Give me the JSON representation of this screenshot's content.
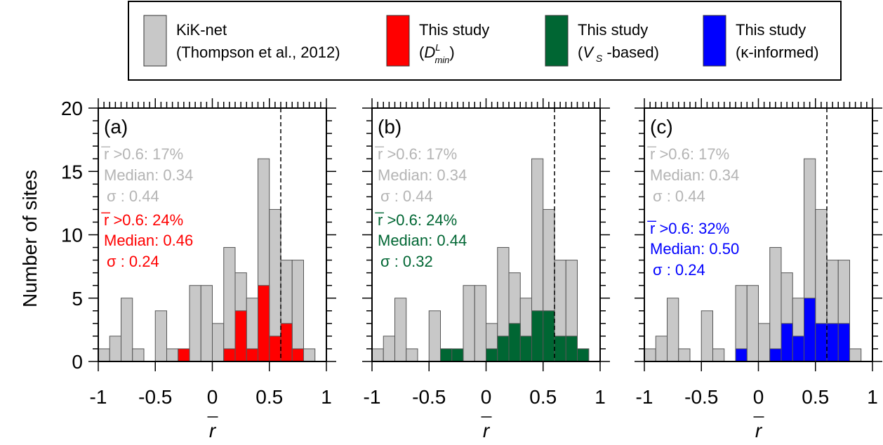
{
  "legend": {
    "entries": [
      {
        "label_line1": "KiK-net",
        "label_line2": "(Thompson et al., 2012)",
        "color": "#c8c8c8"
      },
      {
        "label_line1": "This study",
        "label_line2": "(D",
        "sub": "min",
        "sup": "L",
        "tail": ")",
        "color": "#ff0000"
      },
      {
        "label_line1": "This study",
        "label_line2": "(V",
        "sub": "S",
        "tail": " -based)",
        "color": "#006633"
      },
      {
        "label_line1": "This study",
        "label_line2": "(κ-informed)",
        "color": "#0000ff"
      }
    ]
  },
  "axes": {
    "ylabel": "Number of sites",
    "xlabel": "r",
    "xticks": [
      "-1",
      "-0.5",
      "0",
      "0.5",
      "1"
    ],
    "yticks": [
      "0",
      "5",
      "10",
      "15",
      "20"
    ]
  },
  "chart_data": [
    {
      "type": "bar",
      "panel_label": "(a)",
      "xlim": [
        -1,
        1
      ],
      "ylim": [
        0,
        20
      ],
      "bin_width": 0.1,
      "dashed_line_x": 0.6,
      "bins_start": [
        -1.0,
        -0.9,
        -0.8,
        -0.7,
        -0.6,
        -0.5,
        -0.4,
        -0.3,
        -0.2,
        -0.1,
        0.0,
        0.1,
        0.2,
        0.3,
        0.4,
        0.5,
        0.6,
        0.7,
        0.8,
        0.9
      ],
      "series": [
        {
          "name": "KiK-net (Thompson et al., 2012)",
          "color": "#c8c8c8",
          "values": [
            1,
            2,
            5,
            1,
            0,
            4,
            1,
            0,
            6,
            6,
            3,
            9,
            7,
            5,
            16,
            12,
            8,
            8,
            1,
            0
          ]
        },
        {
          "name": "This study (D^L_min)",
          "color": "#ff0000",
          "values": [
            0,
            0,
            0,
            0,
            0,
            0,
            0,
            1,
            0,
            0,
            0,
            1,
            4,
            1,
            6,
            2,
            3,
            1,
            0,
            0
          ]
        }
      ],
      "stats_kiknet": [
        "r̅ >0.6: 17%",
        "Median: 0.34",
        "σ : 0.44"
      ],
      "stats_study": [
        "r̅ >0.6: 24%",
        "Median: 0.46",
        "σ : 0.24"
      ]
    },
    {
      "type": "bar",
      "panel_label": "(b)",
      "xlim": [
        -1,
        1
      ],
      "ylim": [
        0,
        20
      ],
      "bin_width": 0.1,
      "dashed_line_x": 0.6,
      "bins_start": [
        -1.0,
        -0.9,
        -0.8,
        -0.7,
        -0.6,
        -0.5,
        -0.4,
        -0.3,
        -0.2,
        -0.1,
        0.0,
        0.1,
        0.2,
        0.3,
        0.4,
        0.5,
        0.6,
        0.7,
        0.8,
        0.9
      ],
      "series": [
        {
          "name": "KiK-net (Thompson et al., 2012)",
          "color": "#c8c8c8",
          "values": [
            1,
            2,
            5,
            1,
            0,
            4,
            1,
            0,
            6,
            6,
            3,
            9,
            7,
            5,
            16,
            12,
            8,
            8,
            1,
            0
          ]
        },
        {
          "name": "This study (V_S -based)",
          "color": "#006633",
          "values": [
            0,
            0,
            0,
            0,
            0,
            0,
            1,
            1,
            0,
            0,
            1,
            2,
            3,
            2,
            4,
            4,
            2,
            2,
            1,
            0
          ]
        }
      ],
      "stats_kiknet": [
        "r̅ >0.6: 17%",
        "Median: 0.34",
        "σ : 0.44"
      ],
      "stats_study": [
        "r̅ >0.6: 24%",
        "Median: 0.44",
        "σ : 0.32"
      ]
    },
    {
      "type": "bar",
      "panel_label": "(c)",
      "xlim": [
        -1,
        1
      ],
      "ylim": [
        0,
        20
      ],
      "bin_width": 0.1,
      "dashed_line_x": 0.6,
      "bins_start": [
        -1.0,
        -0.9,
        -0.8,
        -0.7,
        -0.6,
        -0.5,
        -0.4,
        -0.3,
        -0.2,
        -0.1,
        0.0,
        0.1,
        0.2,
        0.3,
        0.4,
        0.5,
        0.6,
        0.7,
        0.8,
        0.9
      ],
      "series": [
        {
          "name": "KiK-net (Thompson et al., 2012)",
          "color": "#c8c8c8",
          "values": [
            1,
            2,
            5,
            1,
            0,
            4,
            1,
            0,
            6,
            6,
            3,
            9,
            7,
            5,
            16,
            12,
            8,
            8,
            1,
            0
          ]
        },
        {
          "name": "This study (κ-informed)",
          "color": "#0000ff",
          "values": [
            0,
            0,
            0,
            0,
            0,
            0,
            0,
            0,
            1,
            0,
            0,
            1,
            3,
            2,
            5,
            3,
            3,
            3,
            0,
            0
          ]
        }
      ],
      "stats_kiknet": [
        "r̅ >0.6: 17%",
        "Median: 0.34",
        "σ : 0.44"
      ],
      "stats_study": [
        "r̅ >0.6: 32%",
        "Median: 0.50",
        "σ : 0.24"
      ]
    }
  ]
}
